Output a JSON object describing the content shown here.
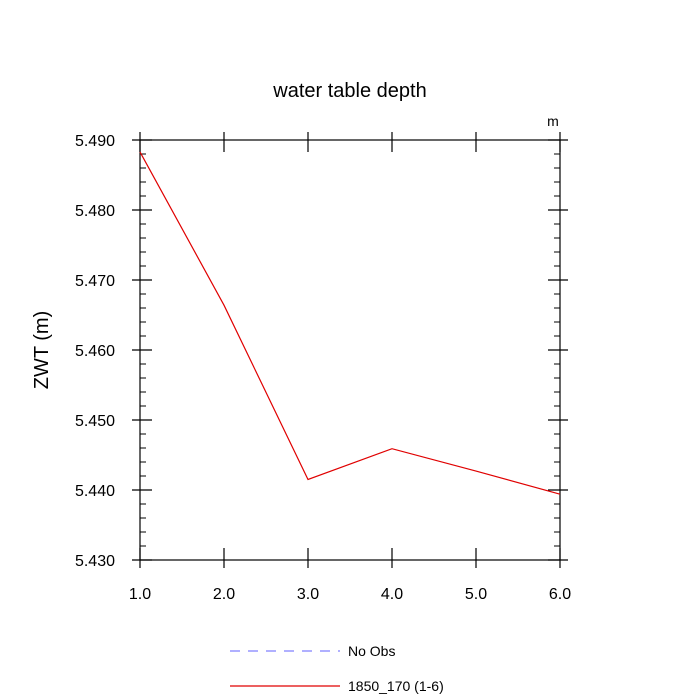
{
  "chart_data": {
    "type": "line",
    "title": "water table depth",
    "units_label": "m",
    "xlabel": "",
    "ylabel": "ZWT  (m)",
    "xlim": [
      1.0,
      6.0
    ],
    "ylim": [
      5.43,
      5.49
    ],
    "xticks": [
      "1.0",
      "2.0",
      "3.0",
      "4.0",
      "5.0",
      "6.0"
    ],
    "yticks": [
      "5.430",
      "5.440",
      "5.450",
      "5.460",
      "5.470",
      "5.480",
      "5.490"
    ],
    "grid": false,
    "legend_position": "bottom",
    "series": [
      {
        "name": "No Obs",
        "color": "#8080ff",
        "dash": "dashed",
        "x": [],
        "y": []
      },
      {
        "name": "1850_170 (1-6)",
        "color": "#e00000",
        "dash": "solid",
        "x": [
          1.0,
          2.0,
          3.0,
          4.0,
          5.0,
          6.0
        ],
        "y": [
          5.4883,
          5.4664,
          5.4415,
          5.4459,
          5.4427,
          5.4394
        ]
      }
    ]
  }
}
